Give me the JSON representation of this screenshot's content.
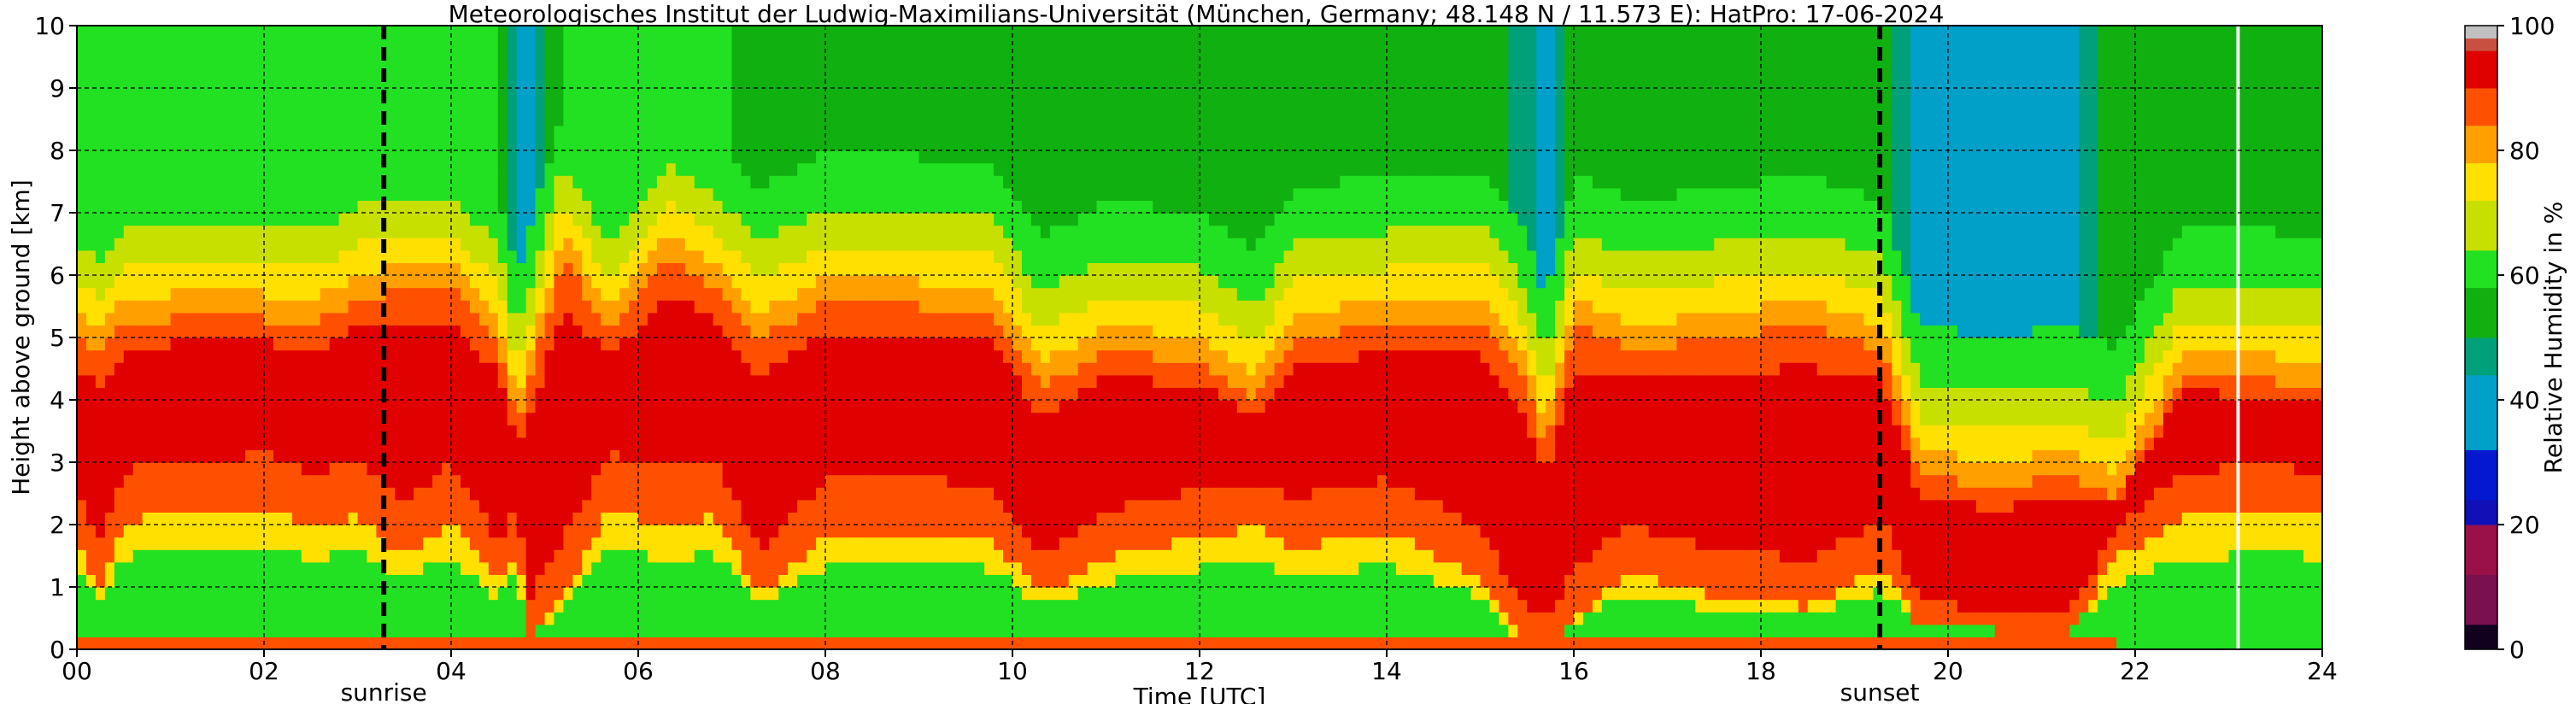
{
  "chart_data": {
    "type": "heatmap",
    "title": "Meteorologisches Institut der Ludwig-Maximilians-Universität (München, Germany; 48.148 N / 11.573 E):    HatPro: 17-06-2024",
    "xlabel": "Time [UTC]",
    "ylabel": "Height above ground [km]",
    "xlim": [
      0,
      24
    ],
    "ylim": [
      0,
      10
    ],
    "x_ticks": [
      "00",
      "02",
      "04",
      "06",
      "08",
      "10",
      "12",
      "14",
      "16",
      "18",
      "20",
      "22",
      "24"
    ],
    "y_ticks": [
      "0",
      "1",
      "2",
      "3",
      "4",
      "5",
      "6",
      "7",
      "8",
      "9",
      "10"
    ],
    "grid": true,
    "colorbar": {
      "label": "Relative Humidity in %",
      "range": [
        0,
        100
      ],
      "ticks": [
        "0",
        "20",
        "40",
        "60",
        "80",
        "100"
      ],
      "bands": [
        {
          "from": 0,
          "to": 4,
          "color": "#12001f"
        },
        {
          "from": 4,
          "to": 12,
          "color": "#7a1050"
        },
        {
          "from": 12,
          "to": 20,
          "color": "#9a1048"
        },
        {
          "from": 20,
          "to": 24,
          "color": "#1010b8"
        },
        {
          "from": 24,
          "to": 32,
          "color": "#0418d0"
        },
        {
          "from": 32,
          "to": 44,
          "color": "#00a0c8"
        },
        {
          "from": 44,
          "to": 50,
          "color": "#00a07a"
        },
        {
          "from": 50,
          "to": 58,
          "color": "#10b010"
        },
        {
          "from": 58,
          "to": 64,
          "color": "#22e022"
        },
        {
          "from": 64,
          "to": 72,
          "color": "#c8e000"
        },
        {
          "from": 72,
          "to": 78,
          "color": "#ffe000"
        },
        {
          "from": 78,
          "to": 84,
          "color": "#ffa000"
        },
        {
          "from": 84,
          "to": 90,
          "color": "#ff5000"
        },
        {
          "from": 90,
          "to": 96,
          "color": "#e00000"
        },
        {
          "from": 96,
          "to": 98,
          "color": "#c85040"
        },
        {
          "from": 98,
          "to": 100,
          "color": "#c0c0c0"
        }
      ]
    },
    "events": [
      {
        "label": "sunrise",
        "time": 3.28
      },
      {
        "label": "sunset",
        "time": 19.27
      }
    ],
    "missing_data_times": [
      23.1
    ],
    "columns": [
      {
        "t": 0.0,
        "surface": 0.3,
        "bottom": 2.0,
        "top": 5.0,
        "upper": 62
      },
      {
        "t": 0.25,
        "surface": 0.3,
        "bottom": 1.2,
        "top": 4.8,
        "upper": 62
      },
      {
        "t": 0.5,
        "surface": 0.3,
        "bottom": 2.4,
        "top": 5.2,
        "upper": 62
      },
      {
        "t": 1.0,
        "surface": 0.3,
        "bottom": 2.7,
        "top": 5.3,
        "upper": 62
      },
      {
        "t": 1.5,
        "surface": 0.3,
        "bottom": 2.6,
        "top": 5.4,
        "upper": 62
      },
      {
        "t": 2.0,
        "surface": 0.3,
        "bottom": 2.8,
        "top": 5.3,
        "upper": 62
      },
      {
        "t": 2.5,
        "surface": 0.3,
        "bottom": 2.4,
        "top": 5.2,
        "upper": 62
      },
      {
        "t": 3.0,
        "surface": 0.3,
        "bottom": 2.6,
        "top": 5.6,
        "upper": 62
      },
      {
        "t": 3.5,
        "surface": 0.3,
        "bottom": 1.8,
        "top": 5.8,
        "upper": 62
      },
      {
        "t": 4.0,
        "surface": 0.3,
        "bottom": 2.5,
        "top": 5.8,
        "upper": 62
      },
      {
        "t": 4.5,
        "surface": 0.3,
        "bottom": 1.2,
        "top": 5.0,
        "upper": 62
      },
      {
        "t": 4.7,
        "surface": 0.3,
        "bottom": 2.0,
        "top": 3.6,
        "upper": 40
      },
      {
        "t": 4.85,
        "surface": 0.1,
        "bottom": 0.2,
        "top": 4.4,
        "upper": 42
      },
      {
        "t": 5.2,
        "surface": 0.3,
        "bottom": 1.0,
        "top": 6.3,
        "upper": 60
      },
      {
        "t": 5.7,
        "surface": 0.3,
        "bottom": 2.8,
        "top": 5.0,
        "upper": 60
      },
      {
        "t": 6.3,
        "surface": 0.3,
        "bottom": 2.3,
        "top": 6.3,
        "upper": 60
      },
      {
        "t": 6.8,
        "surface": 0.3,
        "bottom": 2.6,
        "top": 5.8,
        "upper": 60
      },
      {
        "t": 7.3,
        "surface": 0.3,
        "bottom": 1.0,
        "top": 5.0,
        "upper": 55
      },
      {
        "t": 8.0,
        "surface": 0.3,
        "bottom": 2.2,
        "top": 5.6,
        "upper": 52
      },
      {
        "t": 9.0,
        "surface": 0.3,
        "bottom": 2.3,
        "top": 5.5,
        "upper": 52
      },
      {
        "t": 9.8,
        "surface": 0.3,
        "bottom": 2.1,
        "top": 5.4,
        "upper": 52
      },
      {
        "t": 10.3,
        "surface": 0.3,
        "bottom": 1.0,
        "top": 4.2,
        "upper": 55
      },
      {
        "t": 11.0,
        "surface": 0.2,
        "bottom": 1.8,
        "top": 4.8,
        "upper": 55
      },
      {
        "t": 12.0,
        "surface": 0.2,
        "bottom": 2.2,
        "top": 4.6,
        "upper": 55
      },
      {
        "t": 12.6,
        "surface": 0.2,
        "bottom": 2.4,
        "top": 4.0,
        "upper": 55
      },
      {
        "t": 13.0,
        "surface": 0.2,
        "bottom": 2.0,
        "top": 5.0,
        "upper": 55
      },
      {
        "t": 14.0,
        "surface": 0.2,
        "bottom": 2.3,
        "top": 5.2,
        "upper": 55
      },
      {
        "t": 15.0,
        "surface": 0.2,
        "bottom": 1.4,
        "top": 5.3,
        "upper": 55
      },
      {
        "t": 15.4,
        "surface": 0.2,
        "bottom": 0.2,
        "top": 4.6,
        "upper": 48
      },
      {
        "t": 15.7,
        "surface": 0.1,
        "bottom": 0.0,
        "top": 3.2,
        "upper": 40
      },
      {
        "t": 16.0,
        "surface": 0.2,
        "bottom": 0.6,
        "top": 5.2,
        "upper": 55
      },
      {
        "t": 16.6,
        "surface": 0.2,
        "bottom": 1.5,
        "top": 4.8,
        "upper": 55
      },
      {
        "t": 17.5,
        "surface": 0.2,
        "bottom": 1.0,
        "top": 5.0,
        "upper": 52
      },
      {
        "t": 18.5,
        "surface": 0.2,
        "bottom": 0.8,
        "top": 5.2,
        "upper": 52
      },
      {
        "t": 19.3,
        "surface": 0.2,
        "bottom": 1.6,
        "top": 4.8,
        "upper": 52
      },
      {
        "t": 19.7,
        "surface": 0.2,
        "bottom": 0.4,
        "top": 2.8,
        "upper": 40
      },
      {
        "t": 20.5,
        "surface": 0.3,
        "bottom": 0.3,
        "top": 2.6,
        "upper": 38
      },
      {
        "t": 21.3,
        "surface": 0.3,
        "bottom": 0.3,
        "top": 2.8,
        "upper": 42
      },
      {
        "t": 21.8,
        "surface": 0.1,
        "bottom": 1.8,
        "top": 2.4,
        "upper": 55
      },
      {
        "t": 22.5,
        "surface": 0.1,
        "bottom": 2.6,
        "top": 4.4,
        "upper": 55
      },
      {
        "t": 23.5,
        "surface": 0.1,
        "bottom": 2.7,
        "top": 4.3,
        "upper": 55
      },
      {
        "t": 24.0,
        "surface": 0.1,
        "bottom": 2.6,
        "top": 4.2,
        "upper": 55
      }
    ]
  }
}
